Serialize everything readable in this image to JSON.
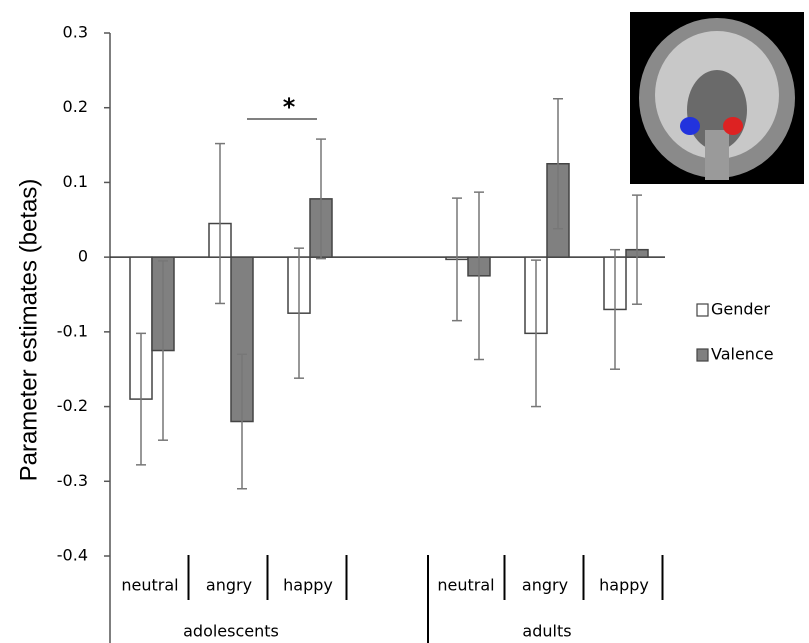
{
  "chart_data": {
    "type": "bar",
    "ylabel": "Parameter estimates (betas)",
    "categories": [
      "neutral",
      "angry",
      "happy",
      "neutral",
      "angry",
      "happy"
    ],
    "groups": [
      "adolescents",
      "adults"
    ],
    "series": [
      {
        "name": "Gender",
        "color": "#ffffff",
        "values": [
          -0.19,
          0.045,
          -0.075,
          -0.003,
          -0.102,
          -0.07
        ],
        "errors": [
          0.088,
          0.107,
          0.087,
          0.082,
          0.098,
          0.08
        ]
      },
      {
        "name": "Valence",
        "color": "#808080",
        "values": [
          -0.125,
          -0.22,
          0.078,
          -0.025,
          0.125,
          0.01
        ],
        "errors": [
          0.12,
          0.09,
          0.08,
          0.112,
          0.087,
          0.073
        ]
      }
    ],
    "significance": "*",
    "ylim": [
      -0.4,
      0.3
    ],
    "yticks": [
      -0.4,
      -0.3,
      -0.2,
      -0.1,
      0,
      0.1,
      0.2,
      0.3
    ],
    "legend": "right"
  }
}
